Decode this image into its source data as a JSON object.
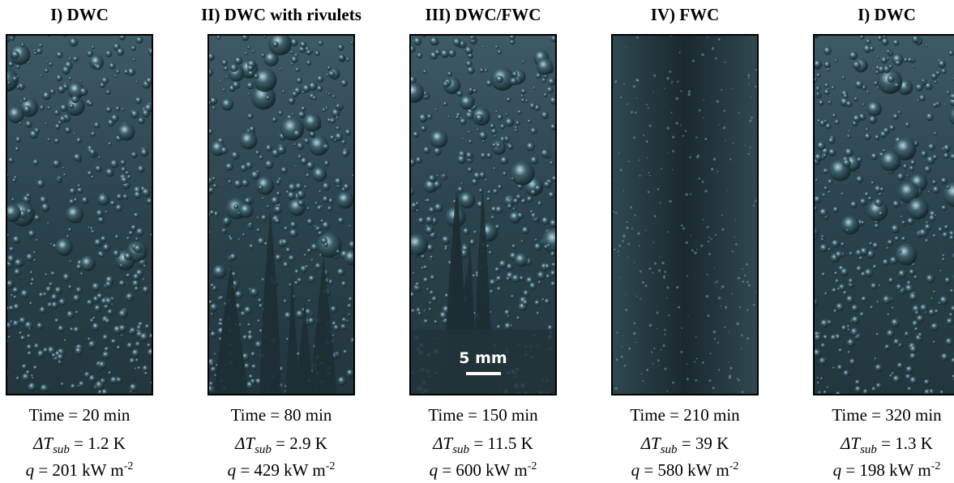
{
  "panels": [
    {
      "title": "I) DWC",
      "time": "Time = 20 min",
      "delta_t": {
        "symbol": "ΔT",
        "subscript": "sub",
        "value": " = 1.2 K"
      },
      "heat_flux": {
        "symbol": "q",
        "value": " = 201 kW m",
        "exponent": "-2"
      }
    },
    {
      "title": "II) DWC with rivulets",
      "time": "Time = 80 min",
      "delta_t": {
        "symbol": "ΔT",
        "subscript": "sub",
        "value": " = 2.9 K"
      },
      "heat_flux": {
        "symbol": "q",
        "value": " = 429 kW m",
        "exponent": "-2"
      }
    },
    {
      "title": "III) DWC/FWC",
      "time": "Time = 150 min",
      "delta_t": {
        "symbol": "ΔT",
        "subscript": "sub",
        "value": " = 11.5 K"
      },
      "heat_flux": {
        "symbol": "q",
        "value": " = 600 kW m",
        "exponent": "-2"
      },
      "scale_bar": "5 mm"
    },
    {
      "title": "IV) FWC",
      "time": "Time = 210 min",
      "delta_t": {
        "symbol": "ΔT",
        "subscript": "sub",
        "value": " = 39 K"
      },
      "heat_flux": {
        "symbol": "q",
        "value": " = 580 kW m",
        "exponent": "-2"
      }
    },
    {
      "title": "I) DWC",
      "time": "Time = 320 min",
      "delta_t": {
        "symbol": "ΔT",
        "subscript": "sub",
        "value": " = 1.3 K"
      },
      "heat_flux": {
        "symbol": "q",
        "value": " = 198 kW m",
        "exponent": "-2"
      }
    }
  ]
}
